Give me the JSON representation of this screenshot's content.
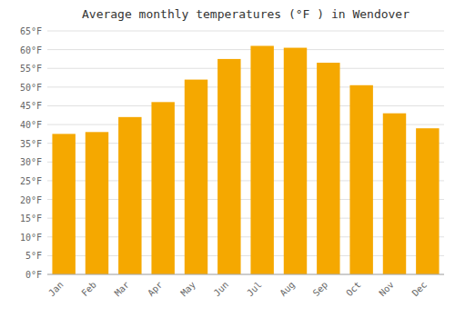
{
  "chart_data": {
    "type": "bar",
    "title": "Average monthly temperatures (°F ) in Wendover",
    "categories": [
      "Jan",
      "Feb",
      "Mar",
      "Apr",
      "May",
      "Jun",
      "Jul",
      "Aug",
      "Sep",
      "Oct",
      "Nov",
      "Dec"
    ],
    "values": [
      37.5,
      38.0,
      42.0,
      46.0,
      52.0,
      57.5,
      61.0,
      60.5,
      56.5,
      50.5,
      43.0,
      39.0
    ],
    "color": "#F5A800",
    "ylim": [
      0,
      65
    ],
    "yticks": [
      {
        "value": 0,
        "label": "0°F"
      },
      {
        "value": 5,
        "label": "5°F"
      },
      {
        "value": 10,
        "label": "10°F"
      },
      {
        "value": 15,
        "label": "15°F"
      },
      {
        "value": 20,
        "label": "20°F"
      },
      {
        "value": 25,
        "label": "25°F"
      },
      {
        "value": 30,
        "label": "30°F"
      },
      {
        "value": 35,
        "label": "35°F"
      },
      {
        "value": 40,
        "label": "40°F"
      },
      {
        "value": 45,
        "label": "45°F"
      },
      {
        "value": 50,
        "label": "50°F"
      },
      {
        "value": 55,
        "label": "55°F"
      },
      {
        "value": 60,
        "label": "60°F"
      },
      {
        "value": 65,
        "label": "65°F"
      }
    ],
    "grid": true
  }
}
